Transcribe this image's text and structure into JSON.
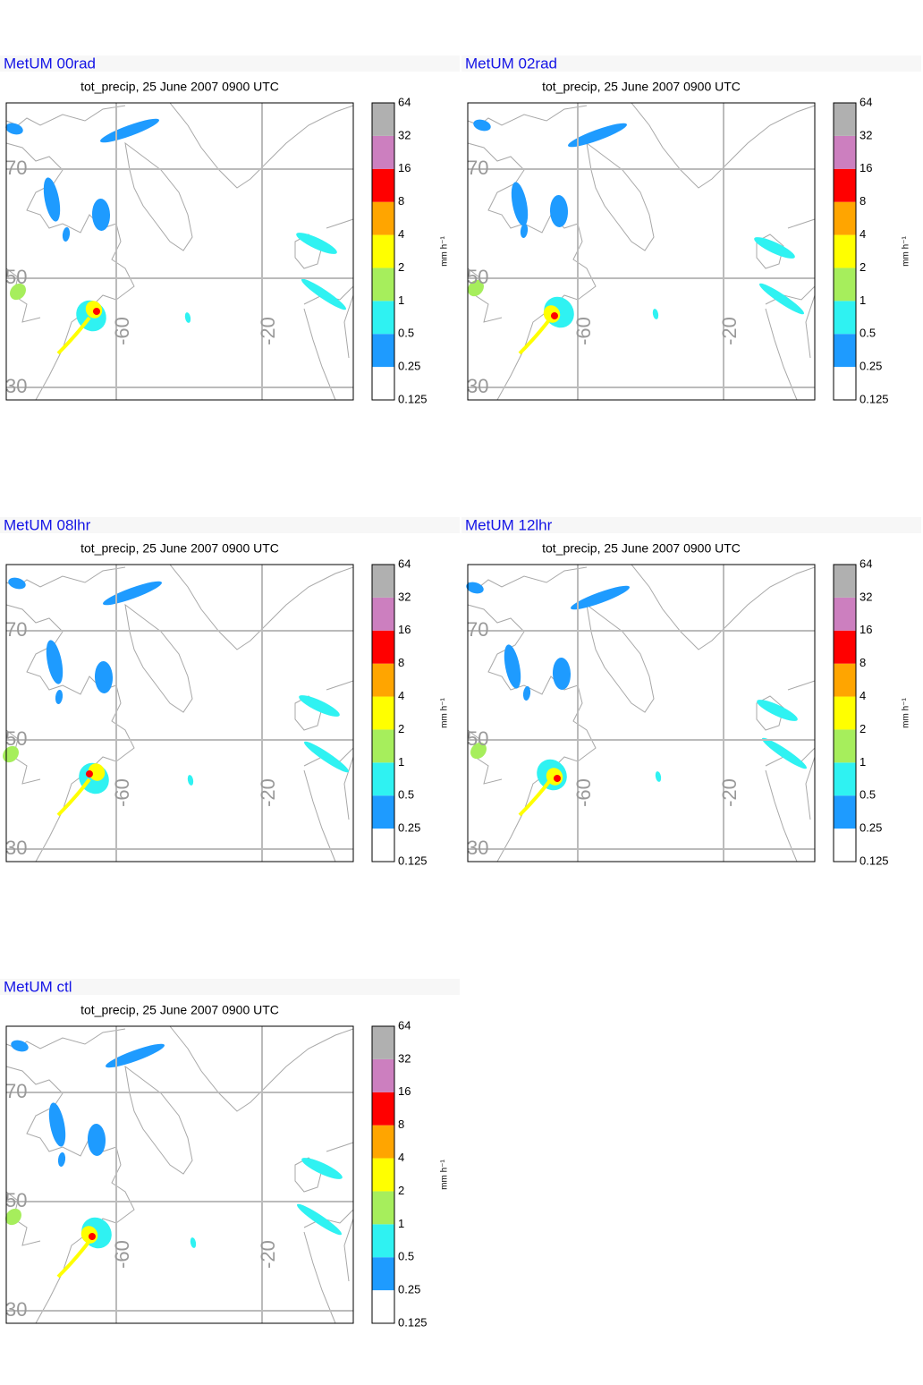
{
  "panels": [
    {
      "title": "MetUM 00rad",
      "subtitle": "tot_precip, 25 June 2007 0900 UTC"
    },
    {
      "title": "MetUM 02rad",
      "subtitle": "tot_precip, 25 June 2007 0900 UTC"
    },
    {
      "title": "MetUM 08lhr",
      "subtitle": "tot_precip, 25 June 2007 0900 UTC"
    },
    {
      "title": "MetUM 12lhr",
      "subtitle": "tot_precip, 25 June 2007 0900 UTC"
    },
    {
      "title": "MetUM ctl",
      "subtitle": "tot_precip, 25 June 2007 0900 UTC"
    }
  ],
  "map": {
    "lat_labels": [
      "70",
      "50",
      "30"
    ],
    "lon_labels": [
      "-60",
      "-20"
    ]
  },
  "colorbar": {
    "labels": [
      "0.125",
      "0.25",
      "0.5",
      "1",
      "2",
      "4",
      "8",
      "16",
      "32",
      "64"
    ],
    "colors": [
      "#ffffff",
      "#1e9bff",
      "#2ff2f2",
      "#a6ee5c",
      "#ffff00",
      "#ffa500",
      "#ff0000",
      "#cc7fbf",
      "#b0b0b0"
    ],
    "unit": "mm h⁻¹"
  }
}
